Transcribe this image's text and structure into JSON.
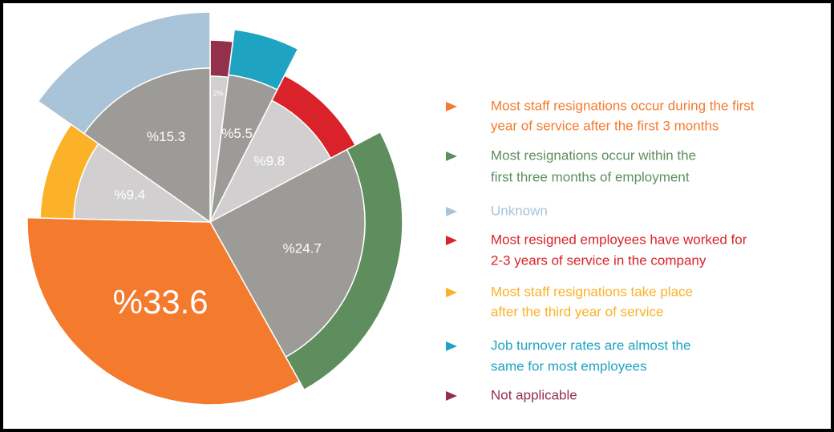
{
  "chart_data": {
    "type": "pie",
    "categories": [
      [
        "Most staff resignations occur during the first",
        "year of service after the first 3 months"
      ],
      [
        "Most  resignations occur within the",
        "first three months of employment"
      ],
      [
        "Unknown"
      ],
      [
        "Most resigned employees have worked for",
        "2-3 years of service in the company"
      ],
      [
        "Most staff resignations take place",
        "after the third year of service"
      ],
      [
        "Job turnover rates are almost the",
        "same for most employees"
      ],
      [
        "Not applicable"
      ]
    ],
    "values": [
      33.6,
      24.7,
      15.3,
      9.8,
      9.4,
      5.5,
      2
    ],
    "value_labels": [
      "%33.6",
      "%24.7",
      "%15.3",
      "%9.8",
      "%9.4",
      "%5.5",
      "2%"
    ],
    "colors": [
      "#f47a2e",
      "#5e8e5e",
      "#a9c4d8",
      "#d9222a",
      "#fbb128",
      "#1fa3c2",
      "#93304b"
    ],
    "inner_colors": [
      "#f47a2e",
      "#9d9b98",
      "#9d9b98",
      "#d1cfcf",
      "#d1cfcf",
      "#9d9b98",
      "#d1cfcf"
    ]
  }
}
